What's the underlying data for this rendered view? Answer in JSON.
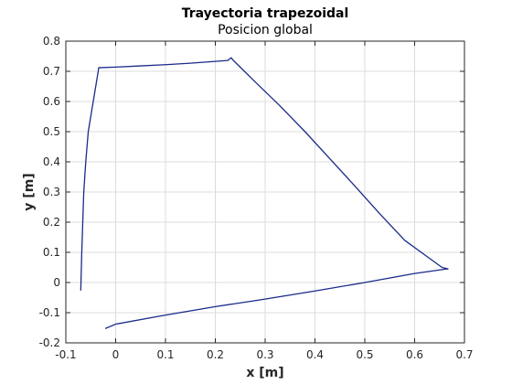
{
  "chart_data": {
    "type": "line",
    "title": "Trayectoria trapezoidal",
    "subtitle": "Posicion global",
    "xlabel": "x [m]",
    "ylabel": "y [m]",
    "xlim": [
      -0.1,
      0.7
    ],
    "ylim": [
      -0.2,
      0.8
    ],
    "xticks": [
      -0.1,
      0,
      0.1,
      0.2,
      0.3,
      0.4,
      0.5,
      0.6,
      0.7
    ],
    "yticks": [
      -0.2,
      -0.1,
      0,
      0.1,
      0.2,
      0.3,
      0.4,
      0.5,
      0.6,
      0.7,
      0.8
    ],
    "xtick_labels": [
      "-0.1",
      "0",
      "0.1",
      "0.2",
      "0.3",
      "0.4",
      "0.5",
      "0.6",
      "0.7"
    ],
    "ytick_labels": [
      "-0.2",
      "-0.1",
      "0",
      "0.1",
      "0.2",
      "0.3",
      "0.4",
      "0.5",
      "0.6",
      "0.7",
      "0.8"
    ],
    "grid": true,
    "series": [
      {
        "color": "#1a2a8a",
        "x": [
          -0.07,
          -0.068,
          -0.066,
          -0.064,
          -0.06,
          -0.055,
          -0.05,
          -0.045,
          -0.04,
          -0.035,
          -0.034,
          0.0,
          0.05,
          0.1,
          0.15,
          0.2,
          0.225,
          0.232,
          0.235,
          0.24,
          0.28,
          0.33,
          0.38,
          0.43,
          0.48,
          0.53,
          0.58,
          0.63,
          0.655,
          0.667,
          0.66,
          0.6,
          0.5,
          0.4,
          0.3,
          0.2,
          0.1,
          0.0,
          -0.02
        ],
        "y": [
          -0.025,
          0.1,
          0.2,
          0.3,
          0.4,
          0.5,
          0.55,
          0.6,
          0.65,
          0.7,
          0.712,
          0.714,
          0.718,
          0.722,
          0.727,
          0.733,
          0.736,
          0.745,
          0.738,
          0.73,
          0.665,
          0.585,
          0.5,
          0.41,
          0.32,
          0.228,
          0.14,
          0.08,
          0.05,
          0.045,
          0.044,
          0.03,
          0.0,
          -0.028,
          -0.055,
          -0.08,
          -0.108,
          -0.138,
          -0.152
        ]
      }
    ]
  }
}
